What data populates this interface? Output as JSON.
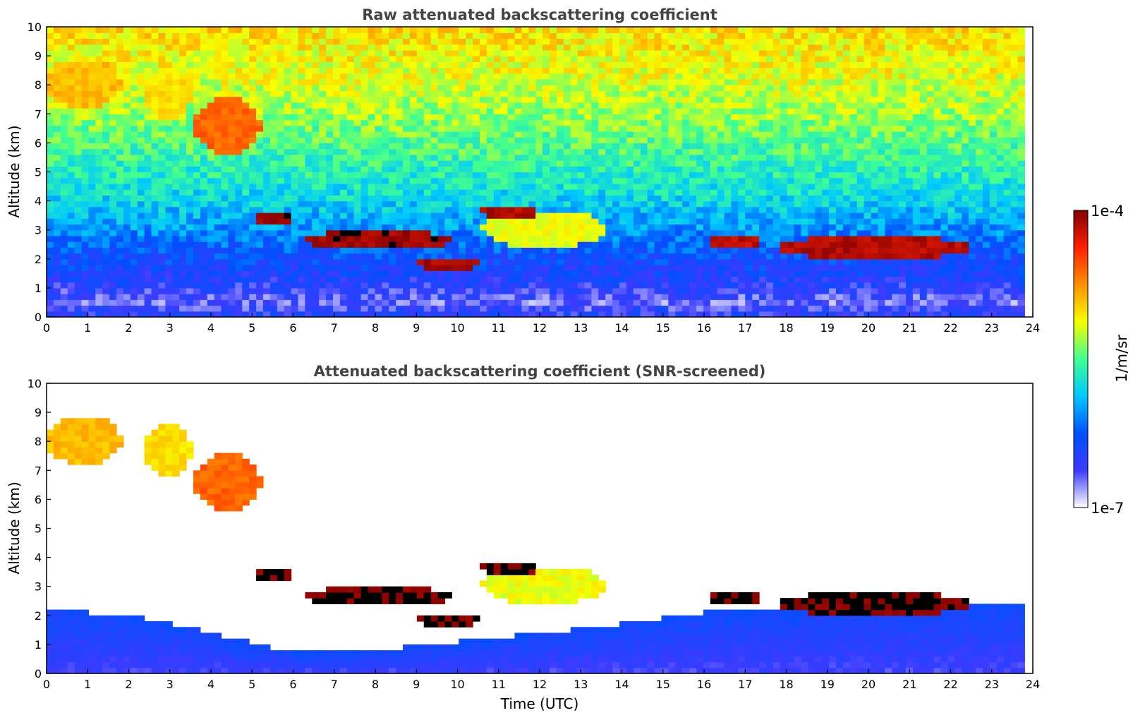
{
  "chart_data": [
    {
      "type": "heatmap",
      "title": "Raw attenuated backscattering coefficient",
      "xlabel": "",
      "ylabel": "Altitude (km)",
      "xlim": [
        0,
        24
      ],
      "ylim": [
        0,
        10
      ],
      "xticks": [
        "0",
        "1",
        "2",
        "3",
        "4",
        "5",
        "6",
        "7",
        "8",
        "9",
        "10",
        "11",
        "12",
        "13",
        "14",
        "15",
        "16",
        "17",
        "18",
        "19",
        "20",
        "21",
        "22",
        "23",
        "24"
      ],
      "yticks": [
        "0",
        "1",
        "2",
        "3",
        "4",
        "5",
        "6",
        "7",
        "8",
        "9",
        "10"
      ],
      "data_end_time": 23.8,
      "background": [
        {
          "alt": 0.0,
          "level": 0.18
        },
        {
          "alt": 0.5,
          "level": 0.1
        },
        {
          "alt": 1.2,
          "level": 0.17
        },
        {
          "alt": 2.0,
          "level": 0.22
        },
        {
          "alt": 3.0,
          "level": 0.32
        },
        {
          "alt": 4.0,
          "level": 0.4
        },
        {
          "alt": 5.5,
          "level": 0.48
        },
        {
          "alt": 7.0,
          "level": 0.56
        },
        {
          "alt": 8.5,
          "level": 0.62
        },
        {
          "alt": 10.0,
          "level": 0.66
        }
      ],
      "features": [
        {
          "kind": "aerosol",
          "t0": 0.0,
          "t1": 1.8,
          "alt0": 7.2,
          "alt1": 8.9,
          "level": 0.7
        },
        {
          "kind": "aerosol",
          "t0": 2.4,
          "t1": 3.5,
          "alt0": 6.8,
          "alt1": 8.6,
          "level": 0.66
        },
        {
          "kind": "aerosol",
          "t0": 3.6,
          "t1": 5.2,
          "alt0": 5.6,
          "alt1": 7.6,
          "level": 0.8
        },
        {
          "kind": "cloud",
          "t0": 5.0,
          "t1": 6.0,
          "alt0": 3.1,
          "alt1": 3.7,
          "level": 0.97
        },
        {
          "kind": "cloud",
          "t0": 6.3,
          "t1": 9.8,
          "alt0": 2.3,
          "alt1": 3.0,
          "level": 0.97
        },
        {
          "kind": "cloud",
          "t0": 9.0,
          "t1": 10.6,
          "alt0": 1.6,
          "alt1": 2.1,
          "level": 0.96
        },
        {
          "kind": "cloud",
          "t0": 10.5,
          "t1": 12.0,
          "alt0": 3.4,
          "alt1": 3.9,
          "level": 0.95
        },
        {
          "kind": "aerosol",
          "t0": 10.6,
          "t1": 13.6,
          "alt0": 2.4,
          "alt1": 3.7,
          "level": 0.62
        },
        {
          "kind": "cloud",
          "t0": 16.0,
          "t1": 17.4,
          "alt0": 2.4,
          "alt1": 2.8,
          "level": 0.94
        },
        {
          "kind": "cloud",
          "t0": 17.8,
          "t1": 22.6,
          "alt0": 2.0,
          "alt1": 2.8,
          "level": 0.95
        }
      ]
    },
    {
      "type": "heatmap",
      "title": "Attenuated backscattering coefficient (SNR-screened)",
      "xlabel": "Time (UTC)",
      "ylabel": "Altitude (km)",
      "xlim": [
        0,
        24
      ],
      "ylim": [
        0,
        10
      ],
      "xticks": [
        "0",
        "1",
        "2",
        "3",
        "4",
        "5",
        "6",
        "7",
        "8",
        "9",
        "10",
        "11",
        "12",
        "13",
        "14",
        "15",
        "16",
        "17",
        "18",
        "19",
        "20",
        "21",
        "22",
        "23",
        "24"
      ],
      "yticks": [
        "0",
        "1",
        "2",
        "3",
        "4",
        "5",
        "6",
        "7",
        "8",
        "9",
        "10"
      ],
      "data_end_time": 23.8,
      "boundary_layer_top": [
        {
          "t": 0,
          "alt": 2.2
        },
        {
          "t": 2,
          "alt": 2.0
        },
        {
          "t": 4,
          "alt": 1.4
        },
        {
          "t": 6,
          "alt": 0.7
        },
        {
          "t": 8,
          "alt": 0.8
        },
        {
          "t": 10,
          "alt": 1.1
        },
        {
          "t": 12,
          "alt": 1.4
        },
        {
          "t": 14,
          "alt": 1.7
        },
        {
          "t": 16,
          "alt": 2.1
        },
        {
          "t": 18,
          "alt": 2.3
        },
        {
          "t": 20,
          "alt": 2.4
        },
        {
          "t": 22,
          "alt": 2.4
        },
        {
          "t": 23.8,
          "alt": 2.3
        }
      ],
      "features": [
        {
          "kind": "aerosol",
          "t0": 0.0,
          "t1": 1.8,
          "alt0": 7.2,
          "alt1": 8.9,
          "level": 0.7
        },
        {
          "kind": "aerosol",
          "t0": 2.4,
          "t1": 3.5,
          "alt0": 6.8,
          "alt1": 8.6,
          "level": 0.66
        },
        {
          "kind": "aerosol",
          "t0": 3.6,
          "t1": 5.2,
          "alt0": 5.6,
          "alt1": 7.6,
          "level": 0.8
        },
        {
          "kind": "cloud",
          "t0": 5.0,
          "t1": 6.0,
          "alt0": 3.1,
          "alt1": 3.7,
          "level": 1.0
        },
        {
          "kind": "cloud",
          "t0": 6.3,
          "t1": 9.8,
          "alt0": 2.3,
          "alt1": 3.0,
          "level": 1.0
        },
        {
          "kind": "cloud",
          "t0": 9.0,
          "t1": 10.6,
          "alt0": 1.6,
          "alt1": 2.1,
          "level": 1.0
        },
        {
          "kind": "cloud",
          "t0": 10.5,
          "t1": 12.0,
          "alt0": 3.4,
          "alt1": 3.9,
          "level": 1.0
        },
        {
          "kind": "aerosol",
          "t0": 10.6,
          "t1": 13.6,
          "alt0": 2.4,
          "alt1": 3.7,
          "level": 0.62
        },
        {
          "kind": "cloud",
          "t0": 16.0,
          "t1": 17.4,
          "alt0": 2.4,
          "alt1": 2.8,
          "level": 1.0
        },
        {
          "kind": "cloud",
          "t0": 17.8,
          "t1": 22.6,
          "alt0": 2.0,
          "alt1": 2.8,
          "level": 1.0
        }
      ]
    }
  ],
  "colorbar": {
    "label": "1/m/sr",
    "max_label": "1e-4",
    "min_label": "1e-7",
    "colors": [
      "#ffffff",
      "#3b3bff",
      "#0050ff",
      "#00c8ff",
      "#40ff90",
      "#f8ff00",
      "#ff9000",
      "#ff2000",
      "#800000"
    ]
  }
}
